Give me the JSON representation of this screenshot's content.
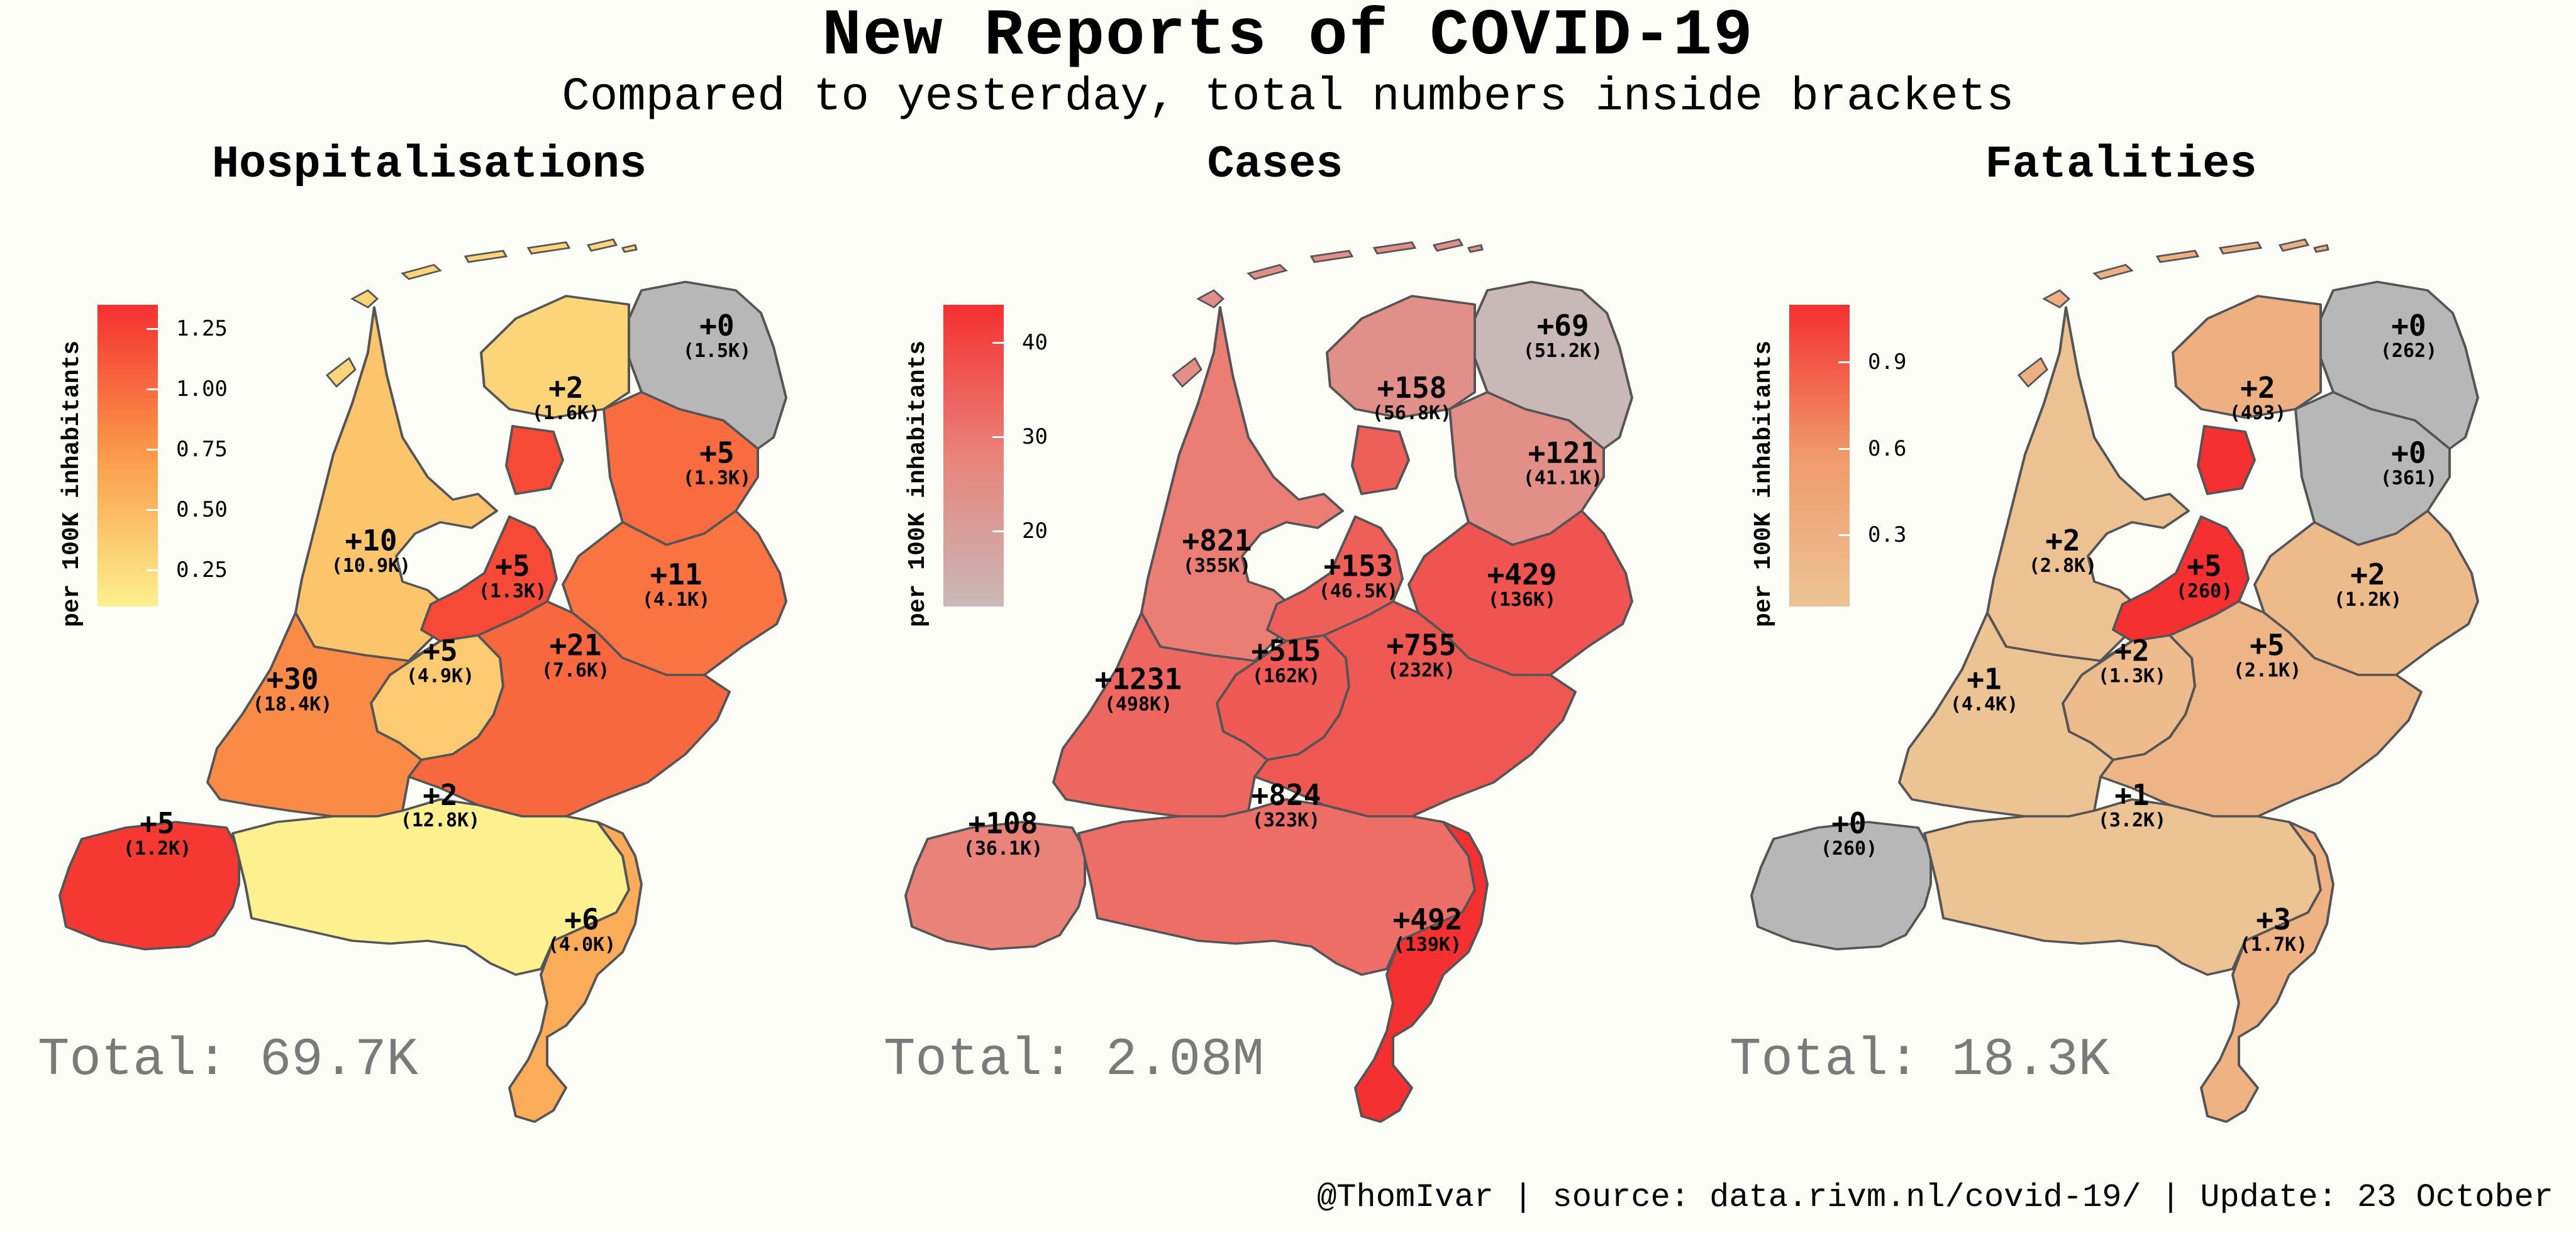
{
  "title": "New Reports of COVID-19",
  "subtitle": "Compared to yesterday, total numbers inside brackets",
  "footer": "@ThomIvar | source: data.rivm.nl/covid-19/ | Update: 23 October",
  "chart_data": [
    {
      "type": "choropleth",
      "title": "Hospitalisations",
      "legend_title": "per 100K inhabitants",
      "legend_ticks": [
        "1.25",
        "1.00",
        "0.75",
        "0.50",
        "0.25"
      ],
      "legend_tick_values": [
        1.25,
        1.0,
        0.75,
        0.5,
        0.25
      ],
      "color_range": [
        0.1,
        1.35
      ],
      "colors": {
        "low": "#fdf08e",
        "mid": "#fb9b4a",
        "high": "#f53030",
        "missing": "#b7b7b7"
      },
      "total": "Total: 69.7K",
      "regions": {
        "groningen": {
          "change": "+0",
          "total": "(1.5K)",
          "value": null
        },
        "friesland": {
          "change": "+2",
          "total": "(1.6K)",
          "value": 0.3
        },
        "drenthe": {
          "change": "+5",
          "total": "(1.3K)",
          "value": 1.0
        },
        "noord-holland": {
          "change": "+10",
          "total": "(10.9K)",
          "value": 0.42
        },
        "flevoland": {
          "change": "+5",
          "total": "(1.3K)",
          "value": 1.2
        },
        "overijssel": {
          "change": "+11",
          "total": "(4.1K)",
          "value": 0.95
        },
        "utrecht": {
          "change": "+5",
          "total": "(4.9K)",
          "value": 0.38
        },
        "gelderland": {
          "change": "+21",
          "total": "(7.6K)",
          "value": 1.02
        },
        "zuid-holland": {
          "change": "+30",
          "total": "(18.4K)",
          "value": 0.82
        },
        "zeeland": {
          "change": "+5",
          "total": "(1.2K)",
          "value": 1.3
        },
        "noord-brabant": {
          "change": "+2",
          "total": "(12.8K)",
          "value": 0.1
        },
        "limburg": {
          "change": "+6",
          "total": "(4.0K)",
          "value": 0.6
        }
      }
    },
    {
      "type": "choropleth",
      "title": "Cases",
      "legend_title": "per 100K inhabitants",
      "legend_ticks": [
        "40",
        "30",
        "20"
      ],
      "legend_tick_values": [
        40,
        30,
        20
      ],
      "color_range": [
        12,
        44
      ],
      "colors": {
        "low": "#c9b8b8",
        "mid": "#e98379",
        "high": "#f53030",
        "missing": "#b7b7b7"
      },
      "total": "Total: 2.08M",
      "regions": {
        "groningen": {
          "change": "+69",
          "total": "(51.2K)",
          "value": 12
        },
        "friesland": {
          "change": "+158",
          "total": "(56.8K)",
          "value": 24
        },
        "drenthe": {
          "change": "+121",
          "total": "(41.1K)",
          "value": 24.5
        },
        "noord-holland": {
          "change": "+821",
          "total": "(355K)",
          "value": 29
        },
        "flevoland": {
          "change": "+153",
          "total": "(46.5K)",
          "value": 35
        },
        "overijssel": {
          "change": "+429",
          "total": "(136K)",
          "value": 37
        },
        "utrecht": {
          "change": "+515",
          "total": "(162K)",
          "value": 36
        },
        "gelderland": {
          "change": "+755",
          "total": "(232K)",
          "value": 36.5
        },
        "zuid-holland": {
          "change": "+1231",
          "total": "(498K)",
          "value": 33.5
        },
        "zeeland": {
          "change": "+108",
          "total": "(36.1K)",
          "value": 28
        },
        "noord-brabant": {
          "change": "+824",
          "total": "(323K)",
          "value": 32
        },
        "limburg": {
          "change": "+492",
          "total": "(139K)",
          "value": 44
        }
      }
    },
    {
      "type": "choropleth",
      "title": "Fatalities",
      "legend_title": "per 100K inhabitants",
      "legend_ticks": [
        "0.9",
        "0.6",
        "0.3"
      ],
      "legend_tick_values": [
        0.9,
        0.6,
        0.3
      ],
      "color_range": [
        0.05,
        1.1
      ],
      "colors": {
        "low": "#ecc494",
        "mid": "#f09a6c",
        "high": "#f53030",
        "missing": "#b7b7b7"
      },
      "total": "Total: 18.3K",
      "regions": {
        "groningen": {
          "change": "+0",
          "total": "(262)",
          "value": null
        },
        "friesland": {
          "change": "+2",
          "total": "(493)",
          "value": 0.3
        },
        "drenthe": {
          "change": "+0",
          "total": "(361)",
          "value": null
        },
        "noord-holland": {
          "change": "+2",
          "total": "(2.8K)",
          "value": 0.07
        },
        "flevoland": {
          "change": "+5",
          "total": "(260)",
          "value": 1.1
        },
        "overijssel": {
          "change": "+2",
          "total": "(1.2K)",
          "value": 0.18
        },
        "utrecht": {
          "change": "+2",
          "total": "(1.3K)",
          "value": 0.16
        },
        "gelderland": {
          "change": "+5",
          "total": "(2.1K)",
          "value": 0.24
        },
        "zuid-holland": {
          "change": "+1",
          "total": "(4.4K)",
          "value": 0.05
        },
        "zeeland": {
          "change": "+0",
          "total": "(260)",
          "value": null
        },
        "noord-brabant": {
          "change": "+1",
          "total": "(3.2K)",
          "value": 0.05
        },
        "limburg": {
          "change": "+3",
          "total": "(1.7K)",
          "value": 0.27
        }
      }
    }
  ]
}
